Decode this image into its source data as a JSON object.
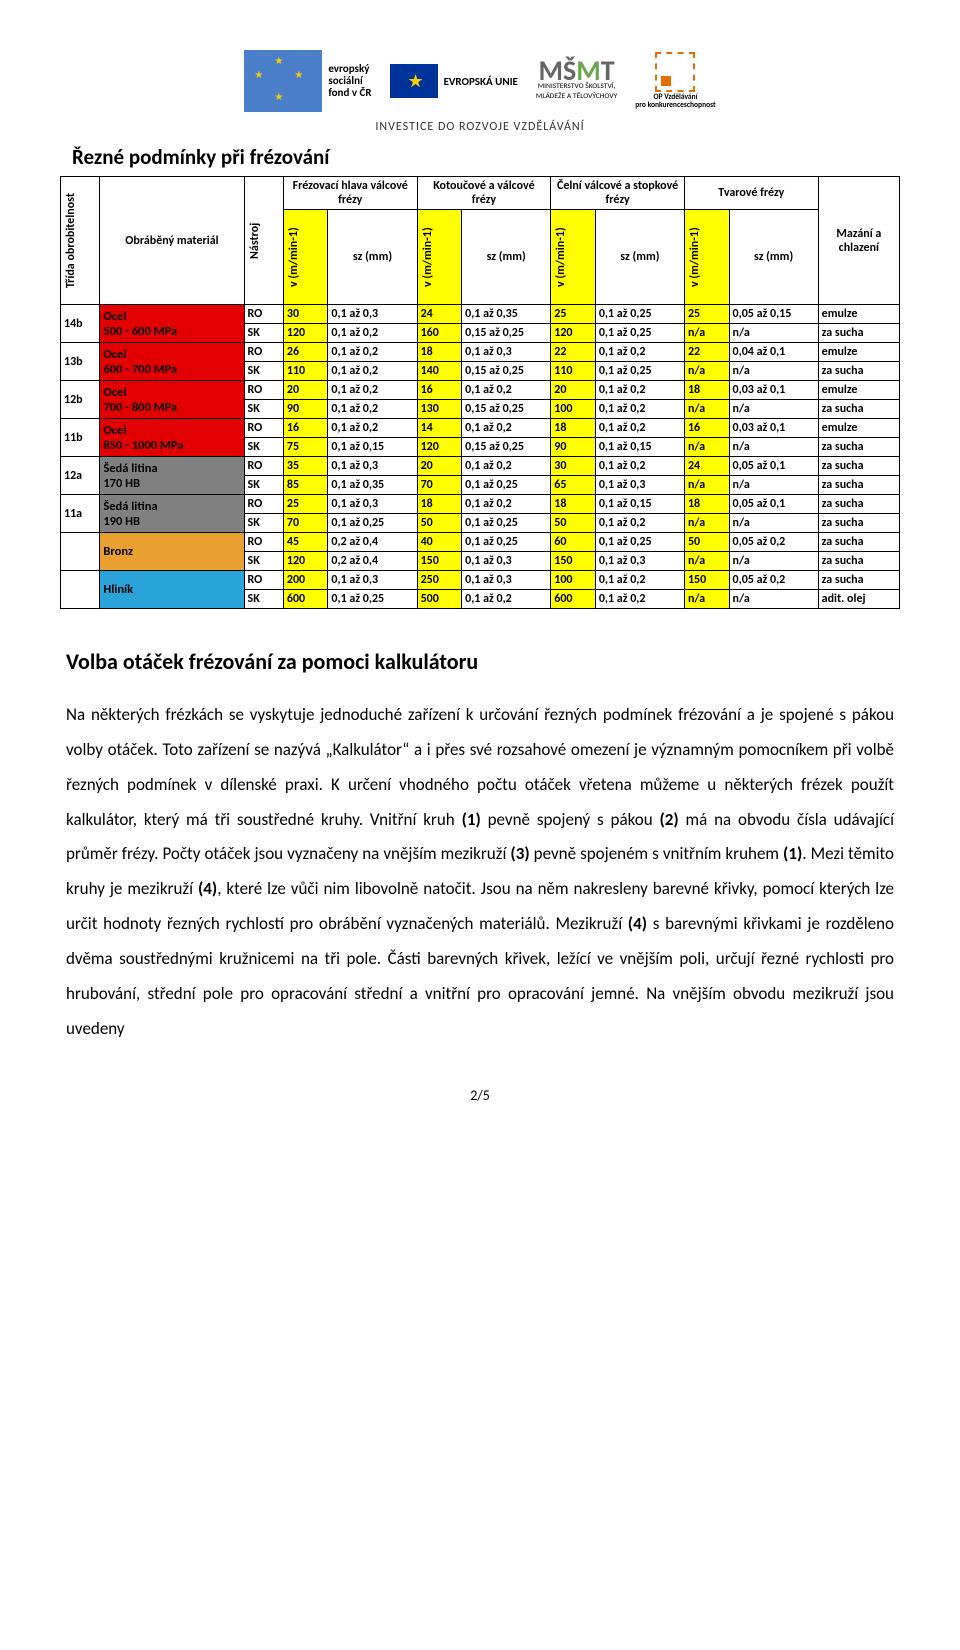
{
  "logos": {
    "esf": {
      "l1": "evropský",
      "l2": "sociální",
      "l3": "fond v ČR",
      "eu": "EVROPSKÁ UNIE"
    },
    "msmt": {
      "l1": "MINISTERSTVO ŠKOLSTVÍ,",
      "l2": "MLÁDEŽE A TĚLOVÝCHOVY"
    },
    "opvk": {
      "l1": "OP Vzdělávání",
      "l2": "pro konkurenceschopnost"
    },
    "investice": "INVESTICE DO ROZVOJE VZDĚLÁVÁNÍ"
  },
  "section_title": "Řezné podmínky při frézování",
  "colors": {
    "yellow": "#ffff00",
    "red": "#e20000",
    "gray": "#808080",
    "orange": "#e8a030",
    "cyan": "#29a3d8",
    "white": "#ffffff"
  },
  "headers": {
    "trida": "Třída obrobitelnost",
    "material": "Obráběný materiál",
    "nastroj": "Nástroj",
    "groups": [
      "Frézovací hlava válcové frézy",
      "Kotoučové a válcové frézy",
      "Čelní válcové a stopkové frézy",
      "Tvarové frézy"
    ],
    "v": "v (m/min-1)",
    "sz": "sz (mm)",
    "mazani": "Mazání a chlazení"
  },
  "materials": [
    {
      "trida": "14b",
      "name": "Ocel",
      "sub": "500 - 600 MPa",
      "color": "#e20000",
      "rows": [
        {
          "n": "RO",
          "c": [
            {
              "v": "30",
              "sz": "0,1 až 0,3"
            },
            {
              "v": "24",
              "sz": "0,1 až 0,35"
            },
            {
              "v": "25",
              "sz": "0,1 až 0,25"
            },
            {
              "v": "25",
              "sz": "0,05 až 0,15"
            }
          ],
          "m": "emulze"
        },
        {
          "n": "SK",
          "c": [
            {
              "v": "120",
              "sz": "0,1 až 0,2"
            },
            {
              "v": "160",
              "sz": "0,15 až 0,25"
            },
            {
              "v": "120",
              "sz": "0,1 až 0,25"
            },
            {
              "v": "n/a",
              "sz": "n/a"
            }
          ],
          "m": "za sucha"
        }
      ]
    },
    {
      "trida": "13b",
      "name": "Ocel",
      "sub": "600 - 700 MPa",
      "color": "#e20000",
      "rows": [
        {
          "n": "RO",
          "c": [
            {
              "v": "26",
              "sz": "0,1 až 0,2"
            },
            {
              "v": "18",
              "sz": "0,1 až 0,3"
            },
            {
              "v": "22",
              "sz": "0,1 až 0,2"
            },
            {
              "v": "22",
              "sz": "0,04 až 0,1"
            }
          ],
          "m": "emulze"
        },
        {
          "n": "SK",
          "c": [
            {
              "v": "110",
              "sz": "0,1 až 0,2"
            },
            {
              "v": "140",
              "sz": "0,15 až 0,25"
            },
            {
              "v": "110",
              "sz": "0,1 až 0,25"
            },
            {
              "v": "n/a",
              "sz": "n/a"
            }
          ],
          "m": "za sucha"
        }
      ]
    },
    {
      "trida": "12b",
      "name": "Ocel",
      "sub": "700 - 800 MPa",
      "color": "#e20000",
      "rows": [
        {
          "n": "RO",
          "c": [
            {
              "v": "20",
              "sz": "0,1 až 0,2"
            },
            {
              "v": "16",
              "sz": "0,1 až 0,2"
            },
            {
              "v": "20",
              "sz": "0,1 až 0,2"
            },
            {
              "v": "18",
              "sz": "0,03 až 0,1"
            }
          ],
          "m": "emulze"
        },
        {
          "n": "SK",
          "c": [
            {
              "v": "90",
              "sz": "0,1 až 0,2"
            },
            {
              "v": "130",
              "sz": "0,15 až 0,25"
            },
            {
              "v": "100",
              "sz": "0,1 až 0,2"
            },
            {
              "v": "n/a",
              "sz": "n/a"
            }
          ],
          "m": "za sucha"
        }
      ]
    },
    {
      "trida": "11b",
      "name": "Ocel",
      "sub": "850 - 1000 MPa",
      "color": "#e20000",
      "rows": [
        {
          "n": "RO",
          "c": [
            {
              "v": "16",
              "sz": "0,1 až 0,2"
            },
            {
              "v": "14",
              "sz": "0,1 až 0,2"
            },
            {
              "v": "18",
              "sz": "0,1 až 0,2"
            },
            {
              "v": "16",
              "sz": "0,03 až 0,1"
            }
          ],
          "m": "emulze"
        },
        {
          "n": "SK",
          "c": [
            {
              "v": "75",
              "sz": "0,1 až 0,15"
            },
            {
              "v": "120",
              "sz": "0,15 až 0,25"
            },
            {
              "v": "90",
              "sz": "0,1 až 0,15"
            },
            {
              "v": "n/a",
              "sz": "n/a"
            }
          ],
          "m": "za sucha"
        }
      ]
    },
    {
      "trida": "12a",
      "name": "Šedá litina",
      "sub": "170 HB",
      "color": "#808080",
      "rows": [
        {
          "n": "RO",
          "c": [
            {
              "v": "35",
              "sz": "0,1 až 0,3"
            },
            {
              "v": "20",
              "sz": "0,1 až 0,2"
            },
            {
              "v": "30",
              "sz": "0,1 až 0,2"
            },
            {
              "v": "24",
              "sz": "0,05 až 0,1"
            }
          ],
          "m": "za sucha"
        },
        {
          "n": "SK",
          "c": [
            {
              "v": "85",
              "sz": "0,1 až 0,35"
            },
            {
              "v": "70",
              "sz": "0,1 až 0,25"
            },
            {
              "v": "65",
              "sz": "0,1 až 0,3"
            },
            {
              "v": "n/a",
              "sz": "n/a"
            }
          ],
          "m": "za sucha"
        }
      ]
    },
    {
      "trida": "11a",
      "name": "Šedá litina",
      "sub": "190 HB",
      "color": "#808080",
      "rows": [
        {
          "n": "RO",
          "c": [
            {
              "v": "25",
              "sz": "0,1 až 0,3"
            },
            {
              "v": "18",
              "sz": "0,1 až 0,2"
            },
            {
              "v": "18",
              "sz": "0,1 až 0,15"
            },
            {
              "v": "18",
              "sz": "0,05 až 0,1"
            }
          ],
          "m": "za sucha"
        },
        {
          "n": "SK",
          "c": [
            {
              "v": "70",
              "sz": "0,1 až 0,25"
            },
            {
              "v": "50",
              "sz": "0,1 až 0,25"
            },
            {
              "v": "50",
              "sz": "0,1 až 0,2"
            },
            {
              "v": "n/a",
              "sz": "n/a"
            }
          ],
          "m": "za sucha"
        }
      ]
    },
    {
      "trida": "",
      "name": "Bronz",
      "sub": "",
      "color": "#e8a030",
      "rows": [
        {
          "n": "RO",
          "c": [
            {
              "v": "45",
              "sz": "0,2 až 0,4"
            },
            {
              "v": "40",
              "sz": "0,1 až 0,25"
            },
            {
              "v": "60",
              "sz": "0,1 až 0,25"
            },
            {
              "v": "50",
              "sz": "0,05 až 0,2"
            }
          ],
          "m": "za sucha"
        },
        {
          "n": "SK",
          "c": [
            {
              "v": "120",
              "sz": "0,2 až 0,4"
            },
            {
              "v": "150",
              "sz": "0,1 až 0,3"
            },
            {
              "v": "150",
              "sz": "0,1 až 0,3"
            },
            {
              "v": "n/a",
              "sz": "n/a"
            }
          ],
          "m": "za sucha"
        }
      ]
    },
    {
      "trida": "",
      "name": "Hliník",
      "sub": "",
      "color": "#29a3d8",
      "rows": [
        {
          "n": "RO",
          "c": [
            {
              "v": "200",
              "sz": "0,1 až 0,3"
            },
            {
              "v": "250",
              "sz": "0,1 až 0,3"
            },
            {
              "v": "100",
              "sz": "0,1 až 0,2"
            },
            {
              "v": "150",
              "sz": "0,05 až 0,2"
            }
          ],
          "m": "za sucha"
        },
        {
          "n": "SK",
          "c": [
            {
              "v": "600",
              "sz": "0,1 až 0,25"
            },
            {
              "v": "500",
              "sz": "0,1 až 0,2"
            },
            {
              "v": "600",
              "sz": "0,1 až 0,2"
            },
            {
              "v": "n/a",
              "sz": "n/a"
            }
          ],
          "m": "adit. olej"
        }
      ]
    }
  ],
  "article": {
    "title": "Volba otáček frézování za pomoci kalkulátoru",
    "body": "Na některých frézkách se vyskytuje jednoduché zařízení k určování řezných podmínek frézování a je spojené s pákou volby otáček. Toto zařízení se nazývá „Kalkulátor“ a i přes své rozsahové omezení je významným pomocníkem při volbě řezných podmínek v dílenské praxi.\nK určení vhodného počtu otáček vřetena můžeme u některých frézek použít kalkulátor, který má tři soustředné kruhy. Vnitřní kruh (1) pevně spojený s pákou (2) má na obvodu čísla udávající průměr frézy. Počty otáček jsou vyznačeny na vnějším mezikruží (3) pevně spojeném s vnitřním kruhem (1). Mezi těmito kruhy je mezikruží (4), které lze vůči nim libovolně natočit. Jsou na něm nakresleny barevné křivky, pomocí kterých lze určit hodnoty řezných rychlostí pro obrábění vyznačených materiálů. Mezikruží (4) s barevnými křivkami je rozděleno dvěma soustřednými kružnicemi na tři pole. Části barevných křivek, ležící ve vnějším poli, určují řezné rychlosti pro hrubování, střední pole pro opracování střední a vnitřní pro opracování jemné. Na vnějším obvodu mezikruží jsou uvedeny"
  },
  "page_number": "2/5"
}
